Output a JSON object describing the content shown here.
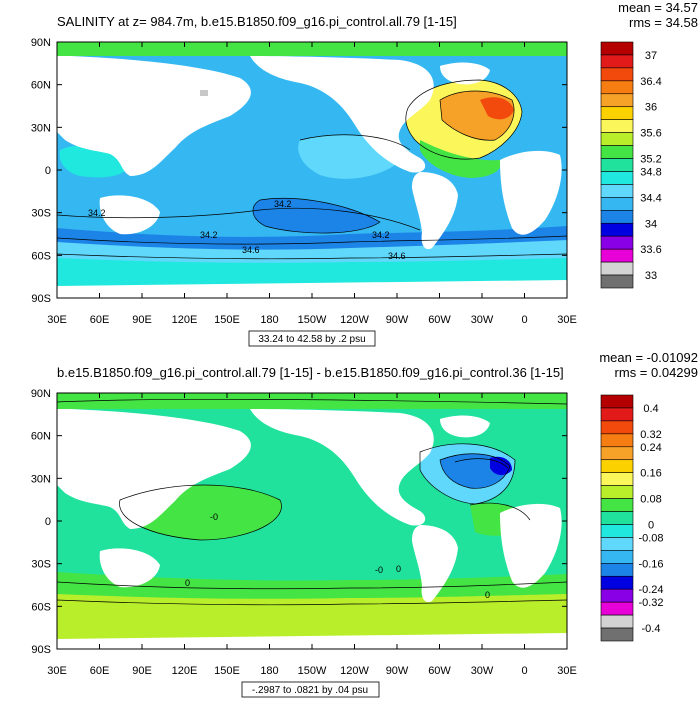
{
  "panels": [
    {
      "title": "SALINITY at z= 984.7m, b.e15.B1850.f09_g16.pi_control.all.79 [1-15]",
      "stats": {
        "mean": "mean = 34.57",
        "rms": "rms = 34.58"
      },
      "range_label": "33.24 to 42.58 by .2 psu",
      "colorbar": {
        "labels": [
          "37",
          "36.4",
          "36",
          "35.6",
          "35.2",
          "34.8",
          "34.4",
          "34",
          "33.6",
          "33"
        ],
        "colors": [
          "#b40000",
          "#e21a1a",
          "#f24a0c",
          "#f57d12",
          "#f6a127",
          "#fbd200",
          "#fbf65a",
          "#b8ef2a",
          "#45e445",
          "#20e29c",
          "#20e8df",
          "#5fd8fb",
          "#35b8f1",
          "#1c84e7",
          "#0000e0",
          "#8a00e6",
          "#e800d8",
          "#d3d3d3",
          "#707070"
        ]
      },
      "contour_labels": [
        "34.2",
        "34.2",
        "34.2",
        "34.2",
        "34.6",
        "34.6"
      ]
    },
    {
      "title": "b.e15.B1850.f09_g16.pi_control.all.79 [1-15] - b.e15.B1850.f09_g16.pi_control.36 [1-15]",
      "stats": {
        "mean": "mean = -0.01092",
        "rms": "rms = 0.04299"
      },
      "range_label": "-.2987 to .0821 by .04 psu",
      "colorbar": {
        "labels": [
          "0.4",
          "0.32",
          "0.24",
          "0.16",
          "0.08",
          "0",
          "-0.08",
          "-0.16",
          "-0.24",
          "-0.32",
          "-0.4"
        ],
        "colors": [
          "#b40000",
          "#e21a1a",
          "#f24a0c",
          "#f57d12",
          "#f6a127",
          "#fbd200",
          "#fbf65a",
          "#b8ef2a",
          "#45e445",
          "#20e29c",
          "#20e8df",
          "#5fd8fb",
          "#35b8f1",
          "#1c84e7",
          "#0000e0",
          "#8a00e6",
          "#e800d8",
          "#d3d3d3",
          "#707070"
        ]
      },
      "contour_labels": [
        "-0",
        "0",
        "0",
        "-0",
        "0"
      ]
    }
  ],
  "axes": {
    "lat_ticks": [
      "90N",
      "60N",
      "30N",
      "0",
      "30S",
      "60S",
      "90S"
    ],
    "lon_ticks": [
      "30E",
      "60E",
      "90E",
      "120E",
      "150E",
      "180",
      "150W",
      "120W",
      "90W",
      "60W",
      "30W",
      "0",
      "30E"
    ]
  }
}
